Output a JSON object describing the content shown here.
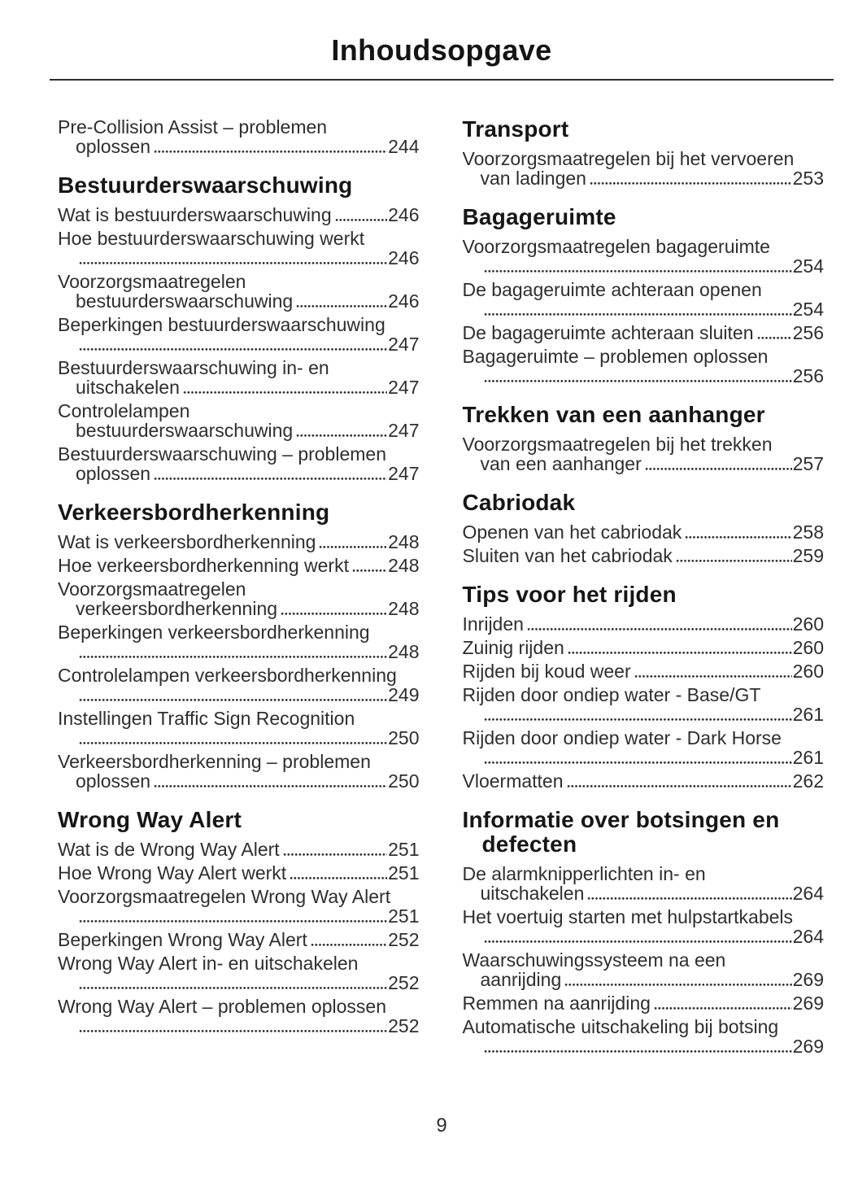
{
  "header": {
    "title": "Inhoudsopgave"
  },
  "footer": {
    "page_number": "9"
  },
  "ink": {
    "body_color": "#2e2e2e",
    "heading_color": "#161616",
    "rule_color": "#2f2f2f"
  },
  "columns": [
    {
      "side": "left",
      "sections": [
        {
          "heading": null,
          "entries": [
            {
              "t1": "Pre-Collision Assist – problemen",
              "t2": "oplossen",
              "page": "244"
            }
          ]
        },
        {
          "heading": [
            "Bestuurderswaarschuwing"
          ],
          "entries": [
            {
              "t1": "Wat is bestuurderswaarschuwing",
              "page": "246"
            },
            {
              "t1": "Hoe bestuurderswaarschuwing werkt",
              "t2": "",
              "page": "246"
            },
            {
              "t1": "Voorzorgsmaatregelen",
              "t2": "bestuurderswaarschuwing",
              "page": "246"
            },
            {
              "t1": "Beperkingen bestuurderswaarschuwing",
              "t2": "",
              "page": "247"
            },
            {
              "t1": "Bestuurderswaarschuwing in- en",
              "t2": "uitschakelen",
              "page": "247"
            },
            {
              "t1": "Controlelampen",
              "t2": "bestuurderswaarschuwing",
              "page": "247"
            },
            {
              "t1": "Bestuurderswaarschuwing – problemen",
              "t2": "oplossen",
              "page": "247"
            }
          ]
        },
        {
          "heading": [
            "Verkeersbordherkenning"
          ],
          "entries": [
            {
              "t1": "Wat is verkeersbordherkenning",
              "page": "248"
            },
            {
              "t1": "Hoe verkeersbordherkenning werkt",
              "page": "248"
            },
            {
              "t1": "Voorzorgsmaatregelen",
              "t2": "verkeersbordherkenning",
              "page": "248"
            },
            {
              "t1": "Beperkingen verkeersbordherkenning",
              "t2": "",
              "page": "248"
            },
            {
              "t1": "Controlelampen verkeersbordherkenning",
              "t2": "",
              "page": "249"
            },
            {
              "t1": "Instellingen Traffic Sign Recognition",
              "t2": "",
              "page": "250"
            },
            {
              "t1": "Verkeersbordherkenning – problemen",
              "t2": "oplossen",
              "page": "250"
            }
          ]
        },
        {
          "heading": [
            "Wrong Way Alert"
          ],
          "entries": [
            {
              "t1": "Wat is de Wrong Way Alert",
              "page": "251"
            },
            {
              "t1": "Hoe Wrong Way Alert werkt",
              "page": "251"
            },
            {
              "t1": "Voorzorgsmaatregelen Wrong Way Alert",
              "t2": "",
              "page": "251"
            },
            {
              "t1": "Beperkingen Wrong Way Alert",
              "page": "252"
            },
            {
              "t1": "Wrong Way Alert in- en uitschakelen",
              "t2": "",
              "page": "252"
            },
            {
              "t1": "Wrong Way Alert – problemen oplossen",
              "t2": "",
              "page": "252"
            }
          ]
        }
      ]
    },
    {
      "side": "right",
      "sections": [
        {
          "heading": [
            "Transport"
          ],
          "entries": [
            {
              "t1": "Voorzorgsmaatregelen bij het vervoeren",
              "t2": "van ladingen",
              "page": "253"
            }
          ]
        },
        {
          "heading": [
            "Bagageruimte"
          ],
          "entries": [
            {
              "t1": "Voorzorgsmaatregelen bagageruimte",
              "t2": "",
              "page": "254"
            },
            {
              "t1": "De bagageruimte achteraan openen",
              "t2": "",
              "page": "254"
            },
            {
              "t1": "De bagageruimte achteraan sluiten",
              "page": "256"
            },
            {
              "t1": "Bagageruimte – problemen oplossen",
              "t2": "",
              "page": "256"
            }
          ]
        },
        {
          "heading": [
            "Trekken van een aanhanger"
          ],
          "entries": [
            {
              "t1": "Voorzorgsmaatregelen bij het trekken",
              "t2": "van een aanhanger",
              "page": "257"
            }
          ]
        },
        {
          "heading": [
            "Cabriodak"
          ],
          "entries": [
            {
              "t1": "Openen van het cabriodak",
              "page": "258"
            },
            {
              "t1": "Sluiten van het cabriodak",
              "page": "259"
            }
          ]
        },
        {
          "heading": [
            "Tips voor het rijden"
          ],
          "entries": [
            {
              "t1": "Inrijden",
              "page": "260"
            },
            {
              "t1": "Zuinig rijden",
              "page": "260"
            },
            {
              "t1": "Rijden bij koud weer",
              "page": "260"
            },
            {
              "t1": "Rijden door ondiep water - Base/GT",
              "t2": "",
              "page": "261"
            },
            {
              "t1": "Rijden door ondiep water - Dark Horse",
              "t2": "",
              "page": "261"
            },
            {
              "t1": "Vloermatten",
              "page": "262"
            }
          ]
        },
        {
          "heading": [
            "Informatie over botsingen en",
            "defecten"
          ],
          "entries": [
            {
              "t1": "De alarmknipperlichten in- en",
              "t2": "uitschakelen",
              "page": "264"
            },
            {
              "t1": "Het voertuig starten met hulpstartkabels",
              "t2": "",
              "page": "264"
            },
            {
              "t1": "Waarschuwingssysteem na een",
              "t2": "aanrijding",
              "page": "269"
            },
            {
              "t1": "Remmen na aanrijding",
              "page": "269"
            },
            {
              "t1": "Automatische uitschakeling bij botsing",
              "t2": "",
              "page": "269"
            }
          ]
        }
      ]
    }
  ]
}
